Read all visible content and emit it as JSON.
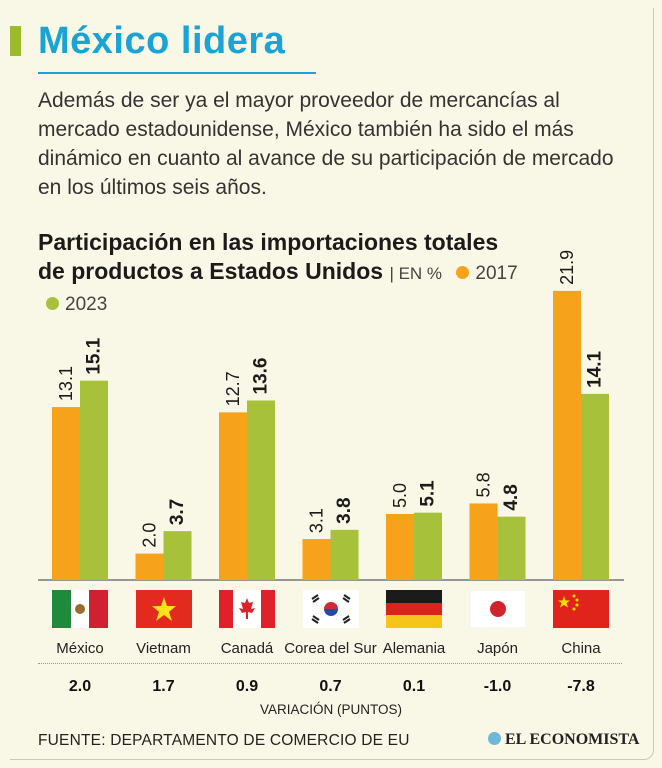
{
  "title": "México lidera",
  "intro": "Además de ser ya el mayor proveedor de mercancías al mercado estadounidense, México también ha sido el más dinámico en cuanto al avance de su participación de mercado en los últimos seis años.",
  "subtitle": "Participación en las importaciones totales de productos a Estados Unidos",
  "subtitle_unit": "| EN %",
  "legend": [
    {
      "label": "2017",
      "color": "#f7a21b"
    },
    {
      "label": "2023",
      "color": "#a7c23a"
    }
  ],
  "chart_data": {
    "type": "bar",
    "categories": [
      "México",
      "Vietnam",
      "Canadá",
      "Corea del Sur",
      "Alemania",
      "Japón",
      "China"
    ],
    "series": [
      {
        "name": "2017",
        "values": [
          13.1,
          2.0,
          12.7,
          3.1,
          5.0,
          5.8,
          21.9
        ],
        "labels": [
          "13.1",
          "2.0",
          "12.7",
          "3.1",
          "5.0",
          "5.8",
          "21.9"
        ],
        "color": "#f7a21b"
      },
      {
        "name": "2023",
        "values": [
          15.1,
          3.7,
          13.6,
          3.8,
          5.1,
          4.8,
          14.1
        ],
        "labels": [
          "15.1",
          "3.7",
          "13.6",
          "3.8",
          "5.1",
          "4.8",
          "14.1"
        ],
        "color": "#a7c23a"
      }
    ],
    "ylim": [
      0,
      24
    ],
    "variation": [
      "2.0",
      "1.7",
      "0.9",
      "0.7",
      "0.1",
      "-1.0",
      "-7.8"
    ],
    "variation_label": "VARIACIÓN (PUNTOS)",
    "flags": [
      "mexico-flag-icon",
      "vietnam-flag-icon",
      "canada-flag-icon",
      "south-korea-flag-icon",
      "germany-flag-icon",
      "japan-flag-icon",
      "china-flag-icon"
    ]
  },
  "source": "FUENTE: DEPARTAMENTO DE COMERCIO DE EU",
  "brand": "EL ECONOMISTA"
}
